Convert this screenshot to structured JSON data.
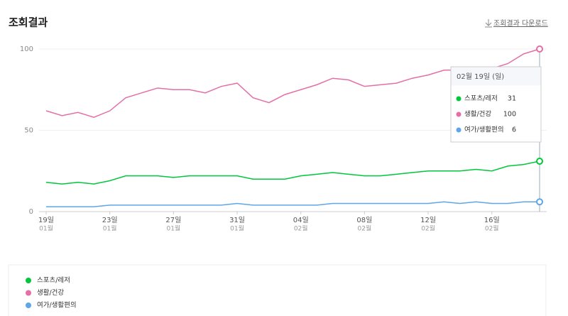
{
  "header": {
    "title": "조회결과",
    "download": "조회결과 다운로드"
  },
  "chart_data": {
    "type": "line",
    "categories": [
      {
        "day": "19일",
        "month": "01월"
      },
      null,
      null,
      null,
      {
        "day": "23일",
        "month": "01월"
      },
      null,
      null,
      null,
      {
        "day": "27일",
        "month": "01월"
      },
      null,
      null,
      null,
      {
        "day": "31일",
        "month": "01월"
      },
      null,
      null,
      null,
      {
        "day": "04일",
        "month": "02월"
      },
      null,
      null,
      null,
      {
        "day": "08일",
        "month": "02월"
      },
      null,
      null,
      null,
      {
        "day": "12일",
        "month": "02월"
      },
      null,
      null,
      null,
      {
        "day": "16일",
        "month": "02월"
      },
      null,
      null,
      null
    ],
    "series": [
      {
        "name": "스포츠/레저",
        "color": "#00c73c",
        "values": [
          18,
          17,
          18,
          17,
          19,
          22,
          22,
          22,
          21,
          22,
          22,
          22,
          22,
          20,
          20,
          20,
          22,
          23,
          24,
          23,
          22,
          22,
          23,
          24,
          25,
          25,
          25,
          26,
          25,
          28,
          29,
          31
        ]
      },
      {
        "name": "생활/건강",
        "color": "#e46fa7",
        "values": [
          62,
          59,
          61,
          58,
          62,
          70,
          73,
          76,
          75,
          75,
          73,
          77,
          79,
          70,
          67,
          72,
          75,
          78,
          82,
          81,
          77,
          78,
          79,
          82,
          84,
          87,
          87,
          85,
          88,
          91,
          97,
          100
        ]
      },
      {
        "name": "여가/생활편의",
        "color": "#5ea6e8",
        "values": [
          3,
          3,
          3,
          3,
          4,
          4,
          4,
          4,
          4,
          4,
          4,
          4,
          5,
          4,
          4,
          4,
          4,
          4,
          5,
          5,
          5,
          5,
          5,
          5,
          5,
          6,
          5,
          6,
          5,
          5,
          6,
          6
        ]
      }
    ],
    "ylim": [
      0,
      100
    ],
    "yticks": [
      0,
      50,
      100
    ],
    "grid": true,
    "tooltip_title": "02월 19일 (일)"
  }
}
